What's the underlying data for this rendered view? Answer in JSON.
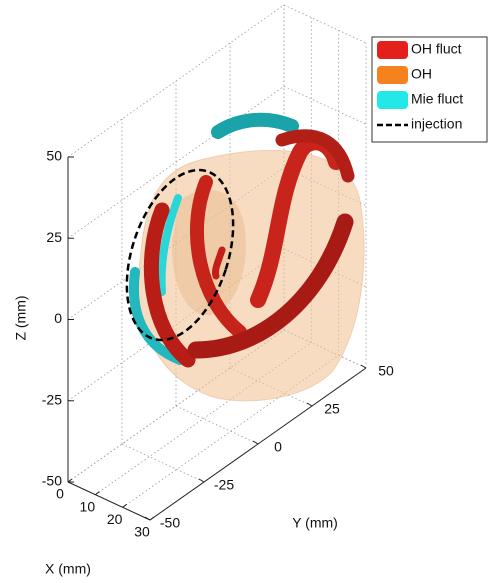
{
  "chart_data": {
    "type": "isosurface3d",
    "xlabel": "X (mm)",
    "ylabel": "Y (mm)",
    "zlabel": "Z (mm)",
    "xlim": [
      0,
      30
    ],
    "ylim": [
      -50,
      50
    ],
    "zlim": [
      -50,
      50
    ],
    "xticks": [
      0,
      10,
      20,
      30
    ],
    "yticks": [
      -50,
      -25,
      0,
      25,
      50
    ],
    "zticks": [
      -50,
      -25,
      0,
      25,
      50
    ],
    "grid": true,
    "legend": "upper right",
    "series": [
      {
        "name": "OH fluct",
        "color": "#e3201b"
      },
      {
        "name": "OH",
        "color": "#f5821f"
      },
      {
        "name": "Mie fluct",
        "color": "#22e8e8"
      },
      {
        "name": "injection",
        "color": "#000000"
      }
    ]
  }
}
